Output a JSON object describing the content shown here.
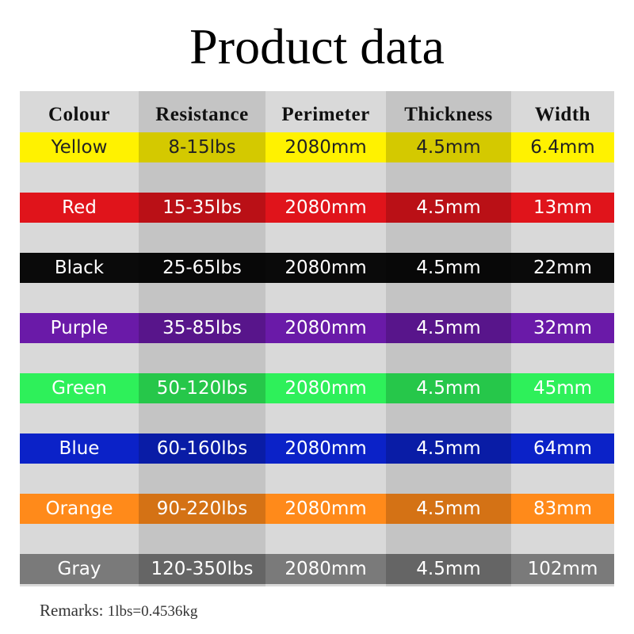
{
  "header": {
    "title": "Product data"
  },
  "table": {
    "columns": [
      "Colour",
      "Resistance",
      "Perimeter",
      "Thickness",
      "Width"
    ],
    "rows": [
      {
        "cells": [
          "Yellow",
          "8-15lbs",
          "2080mm",
          "4.5mm",
          "6.4mm"
        ],
        "color": "#fff200",
        "text_color": "#222222"
      },
      {
        "cells": [
          "Red",
          "15-35lbs",
          "2080mm",
          "4.5mm",
          "13mm"
        ],
        "color": "#e0141b",
        "text_color": "#ffffff"
      },
      {
        "cells": [
          "Black",
          "25-65lbs",
          "2080mm",
          "4.5mm",
          "22mm"
        ],
        "color": "#0a0a0a",
        "text_color": "#ffffff"
      },
      {
        "cells": [
          "Purple",
          "35-85lbs",
          "2080mm",
          "4.5mm",
          "32mm"
        ],
        "color": "#6a1aa8",
        "text_color": "#ffffff"
      },
      {
        "cells": [
          "Green",
          "50-120lbs",
          "2080mm",
          "4.5mm",
          "45mm"
        ],
        "color": "#2ef05a",
        "text_color": "#ffffff"
      },
      {
        "cells": [
          "Blue",
          "60-160lbs",
          "2080mm",
          "4.5mm",
          "64mm"
        ],
        "color": "#0b22c8",
        "text_color": "#ffffff"
      },
      {
        "cells": [
          "Orange",
          "90-220lbs",
          "2080mm",
          "4.5mm",
          "83mm"
        ],
        "color": "#ff8a1a",
        "text_color": "#ffffff"
      },
      {
        "cells": [
          "Gray",
          "120-350lbs",
          "2080mm",
          "4.5mm",
          "102mm"
        ],
        "color": "#7a7a7a",
        "text_color": "#ffffff"
      }
    ]
  },
  "remarks": {
    "label": "Remarks:",
    "text": "1lbs=0.4536kg"
  }
}
